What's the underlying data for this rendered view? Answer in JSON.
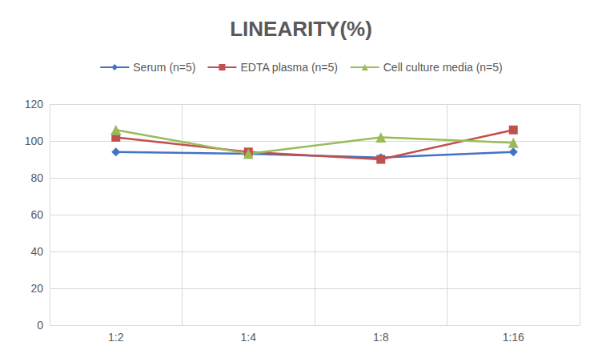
{
  "chart_data": {
    "type": "line",
    "title": "LINEARITY(%)",
    "categories": [
      "1:2",
      "1:4",
      "1:8",
      "1:16"
    ],
    "series": [
      {
        "name": "Serum (n=5)",
        "color": "#4472c4",
        "marker": "diamond",
        "values": [
          94,
          93,
          91,
          94
        ]
      },
      {
        "name": "EDTA plasma (n=5)",
        "color": "#c0504d",
        "marker": "square",
        "values": [
          102,
          94,
          90,
          106
        ]
      },
      {
        "name": "Cell culture media (n=5)",
        "color": "#9bbb59",
        "marker": "triangle",
        "values": [
          106,
          93,
          102,
          99
        ]
      }
    ],
    "ylim": [
      0,
      120
    ],
    "yticks": [
      0,
      20,
      40,
      60,
      80,
      100,
      120
    ],
    "grid": true,
    "legend": "top"
  }
}
